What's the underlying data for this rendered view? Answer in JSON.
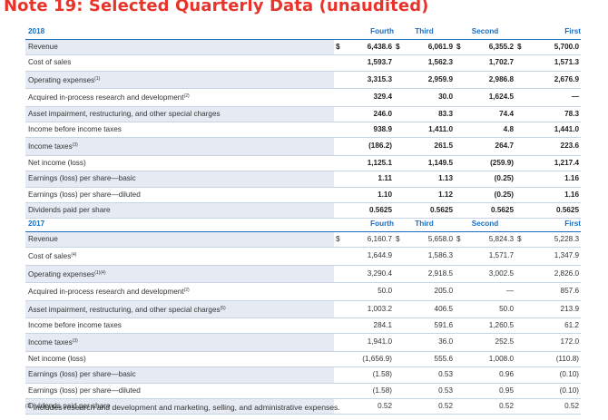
{
  "title": "Note 19: Selected Quarterly Data (unaudited)",
  "quarters": [
    "Fourth",
    "Third",
    "Second",
    "First"
  ],
  "table_2018": {
    "year": "2018",
    "rows": [
      {
        "label": "Revenue",
        "sup": "",
        "cells": [
          [
            "$",
            "6,438.6"
          ],
          [
            "$",
            "6,061.9"
          ],
          [
            "$",
            "6,355.2"
          ],
          [
            "$",
            "5,700.0"
          ]
        ]
      },
      {
        "label": "Cost of sales",
        "sup": "",
        "cells": [
          [
            "",
            "1,593.7"
          ],
          [
            "",
            "1,562.3"
          ],
          [
            "",
            "1,702.7"
          ],
          [
            "",
            "1,571.3"
          ]
        ]
      },
      {
        "label": "Operating expenses",
        "sup": "(1)",
        "cells": [
          [
            "",
            "3,315.3"
          ],
          [
            "",
            "2,959.9"
          ],
          [
            "",
            "2,986.8"
          ],
          [
            "",
            "2,676.9"
          ]
        ]
      },
      {
        "label": "Acquired in-process research and development",
        "sup": "(2)",
        "cells": [
          [
            "",
            "329.4"
          ],
          [
            "",
            "30.0"
          ],
          [
            "",
            "1,624.5"
          ],
          [
            "",
            "—"
          ]
        ]
      },
      {
        "label": "Asset impairment, restructuring, and other special charges",
        "sup": "",
        "cells": [
          [
            "",
            "246.0"
          ],
          [
            "",
            "83.3"
          ],
          [
            "",
            "74.4"
          ],
          [
            "",
            "78.3"
          ]
        ]
      },
      {
        "label": "Income before income taxes",
        "sup": "",
        "cells": [
          [
            "",
            "938.9"
          ],
          [
            "",
            "1,411.0"
          ],
          [
            "",
            "4.8"
          ],
          [
            "",
            "1,441.0"
          ]
        ]
      },
      {
        "label": "Income taxes",
        "sup": "(3)",
        "cells": [
          [
            "",
            "(186.2)"
          ],
          [
            "",
            "261.5"
          ],
          [
            "",
            "264.7"
          ],
          [
            "",
            "223.6"
          ]
        ]
      },
      {
        "label": "Net income (loss)",
        "sup": "",
        "cells": [
          [
            "",
            "1,125.1"
          ],
          [
            "",
            "1,149.5"
          ],
          [
            "",
            "(259.9)"
          ],
          [
            "",
            "1,217.4"
          ]
        ]
      },
      {
        "label": "Earnings (loss) per share—basic",
        "sup": "",
        "cells": [
          [
            "",
            "1.11"
          ],
          [
            "",
            "1.13"
          ],
          [
            "",
            "(0.25)"
          ],
          [
            "",
            "1.16"
          ]
        ]
      },
      {
        "label": "Earnings (loss) per share—diluted",
        "sup": "",
        "cells": [
          [
            "",
            "1.10"
          ],
          [
            "",
            "1.12"
          ],
          [
            "",
            "(0.25)"
          ],
          [
            "",
            "1.16"
          ]
        ]
      },
      {
        "label": "Dividends paid per share",
        "sup": "",
        "cells": [
          [
            "",
            "0.5625"
          ],
          [
            "",
            "0.5625"
          ],
          [
            "",
            "0.5625"
          ],
          [
            "",
            "0.5625"
          ]
        ]
      }
    ]
  },
  "table_2017": {
    "year": "2017",
    "rows": [
      {
        "label": "Revenue",
        "sup": "",
        "cells": [
          [
            "$",
            "6,160.7"
          ],
          [
            "$",
            "5,658.0"
          ],
          [
            "$",
            "5,824.3"
          ],
          [
            "$",
            "5,228.3"
          ]
        ]
      },
      {
        "label": "Cost of sales",
        "sup": "(4)",
        "cells": [
          [
            "",
            "1,644.9"
          ],
          [
            "",
            "1,586.3"
          ],
          [
            "",
            "1,571.7"
          ],
          [
            "",
            "1,347.9"
          ]
        ]
      },
      {
        "label": "Operating expenses",
        "sup": "(1)(4)",
        "cells": [
          [
            "",
            "3,290.4"
          ],
          [
            "",
            "2,918.5"
          ],
          [
            "",
            "3,002.5"
          ],
          [
            "",
            "2,826.0"
          ]
        ]
      },
      {
        "label": "Acquired in-process research and development",
        "sup": "(2)",
        "cells": [
          [
            "",
            "50.0"
          ],
          [
            "",
            "205.0"
          ],
          [
            "",
            "—"
          ],
          [
            "",
            "857.6"
          ]
        ]
      },
      {
        "label": "Asset impairment, restructuring, and other special charges",
        "sup": "(5)",
        "cells": [
          [
            "",
            "1,003.2"
          ],
          [
            "",
            "406.5"
          ],
          [
            "",
            "50.0"
          ],
          [
            "",
            "213.9"
          ]
        ]
      },
      {
        "label": "Income before income taxes",
        "sup": "",
        "cells": [
          [
            "",
            "284.1"
          ],
          [
            "",
            "591.6"
          ],
          [
            "",
            "1,260.5"
          ],
          [
            "",
            "61.2"
          ]
        ]
      },
      {
        "label": "Income taxes",
        "sup": "(3)",
        "cells": [
          [
            "",
            "1,941.0"
          ],
          [
            "",
            "36.0"
          ],
          [
            "",
            "252.5"
          ],
          [
            "",
            "172.0"
          ]
        ]
      },
      {
        "label": "Net income (loss)",
        "sup": "",
        "cells": [
          [
            "",
            "(1,656.9)"
          ],
          [
            "",
            "555.6"
          ],
          [
            "",
            "1,008.0"
          ],
          [
            "",
            "(110.8)"
          ]
        ]
      },
      {
        "label": "Earnings (loss) per share—basic",
        "sup": "",
        "cells": [
          [
            "",
            "(1.58)"
          ],
          [
            "",
            "0.53"
          ],
          [
            "",
            "0.96"
          ],
          [
            "",
            "(0.10)"
          ]
        ]
      },
      {
        "label": "Earnings (loss) per share—diluted",
        "sup": "",
        "cells": [
          [
            "",
            "(1.58)"
          ],
          [
            "",
            "0.53"
          ],
          [
            "",
            "0.95"
          ],
          [
            "",
            "(0.10)"
          ]
        ]
      },
      {
        "label": "Dividends paid per share",
        "sup": "",
        "cells": [
          [
            "",
            "0.52"
          ],
          [
            "",
            "0.52"
          ],
          [
            "",
            "0.52"
          ],
          [
            "",
            "0.52"
          ]
        ]
      }
    ]
  },
  "footnote": {
    "sup": "(1)",
    "text": "Includes research and development and marketing, selling, and administrative expenses."
  }
}
